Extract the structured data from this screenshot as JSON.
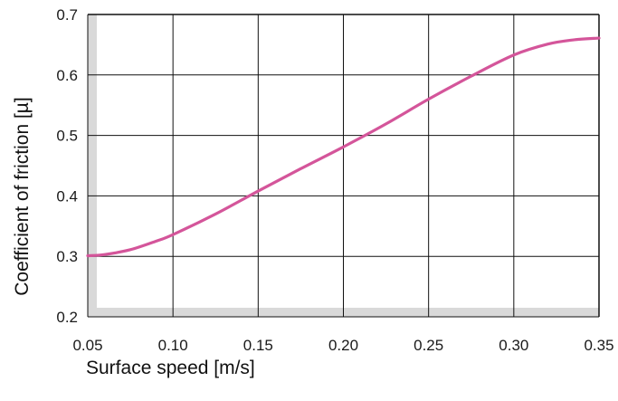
{
  "chart_data": {
    "type": "line",
    "title": "",
    "xlabel": "Surface speed [m/s]",
    "ylabel": "Coefficient of friction [µ]",
    "xlim": [
      0.05,
      0.35
    ],
    "ylim": [
      0.2,
      0.7
    ],
    "x_ticks": [
      "0.05",
      "0.10",
      "0.15",
      "0.20",
      "0.25",
      "0.30",
      "0.35"
    ],
    "y_ticks": [
      "0.2",
      "0.3",
      "0.4",
      "0.5",
      "0.6",
      "0.7"
    ],
    "grid": true,
    "series": [
      {
        "color": "#d4559a",
        "x": [
          0.05,
          0.06,
          0.075,
          0.09,
          0.1,
          0.125,
          0.15,
          0.175,
          0.2,
          0.225,
          0.25,
          0.275,
          0.3,
          0.32,
          0.335,
          0.35
        ],
        "y": [
          0.301,
          0.303,
          0.311,
          0.325,
          0.336,
          0.37,
          0.408,
          0.445,
          0.481,
          0.519,
          0.56,
          0.598,
          0.633,
          0.651,
          0.658,
          0.661
        ]
      }
    ],
    "colors": {
      "grid": "#111111",
      "axis_band": "#d9d9d9",
      "line": "#d4559a"
    }
  }
}
